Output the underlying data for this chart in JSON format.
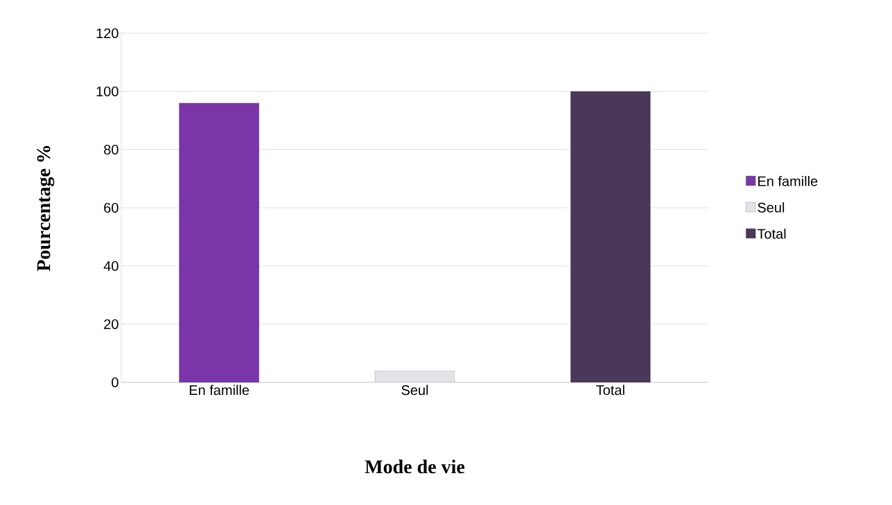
{
  "chart_data": {
    "type": "bar",
    "xlabel": "Mode de vie",
    "ylabel": "Pourcentage %",
    "categories": [
      "En famille",
      "Seul",
      "Total"
    ],
    "series": [
      {
        "name": "En famille",
        "color": "#7a35a8",
        "values": [
          96,
          null,
          null
        ]
      },
      {
        "name": "Seul",
        "color": "#e6e2ea",
        "values": [
          null,
          4,
          null
        ]
      },
      {
        "name": "Total",
        "color": "#4a3858",
        "values": [
          null,
          null,
          100
        ]
      }
    ],
    "ylim": [
      0,
      120
    ],
    "yticks": [
      0,
      20,
      40,
      60,
      80,
      100,
      120
    ],
    "grid": "y",
    "legend": "right"
  }
}
